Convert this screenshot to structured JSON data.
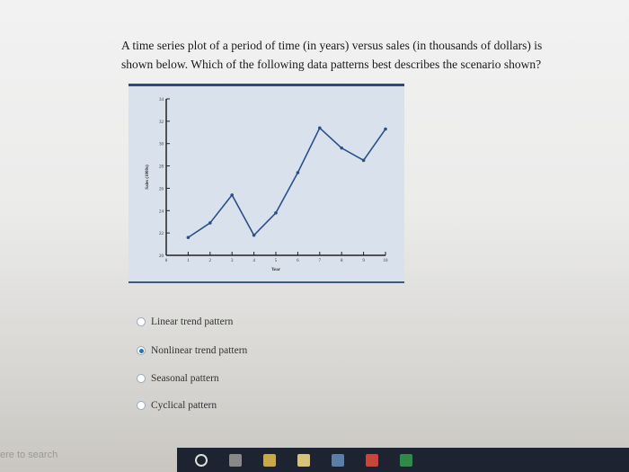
{
  "question": "A time series plot of a period of time (in years) versus sales (in thousands of dollars) is shown below. Which of the following data patterns best describes the scenario shown?",
  "chart_data": {
    "type": "line",
    "xlabel": "Year",
    "ylabel": "Sales (1000s)",
    "x": [
      1,
      2,
      3,
      4,
      5,
      6,
      7,
      8,
      9,
      10
    ],
    "values": [
      21.6,
      22.9,
      25.4,
      21.8,
      23.8,
      27.4,
      31.4,
      29.6,
      28.5,
      31.3
    ],
    "xlim": [
      0,
      10
    ],
    "ylim": [
      20,
      34
    ],
    "xticks": [
      "0",
      "1",
      "2",
      "3",
      "4",
      "5",
      "6",
      "7",
      "8",
      "9",
      "10"
    ],
    "yticks": [
      "20",
      "22",
      "24",
      "26",
      "28",
      "30",
      "32",
      "34"
    ],
    "line_color": "#2c4f8c",
    "background": "#d9e2ec"
  },
  "options": [
    {
      "label": "Linear trend pattern",
      "selected": false
    },
    {
      "label": "Nonlinear trend pattern",
      "selected": true
    },
    {
      "label": "Seasonal pattern",
      "selected": false
    },
    {
      "label": "Cyclical pattern",
      "selected": false
    }
  ],
  "taskbar": {
    "search_text": "ere to search",
    "icons": [
      "cortana-icon",
      "task-view-icon",
      "file-explorer-icon",
      "store-icon",
      "app-icon",
      "chrome-icon",
      "excel-icon"
    ]
  }
}
